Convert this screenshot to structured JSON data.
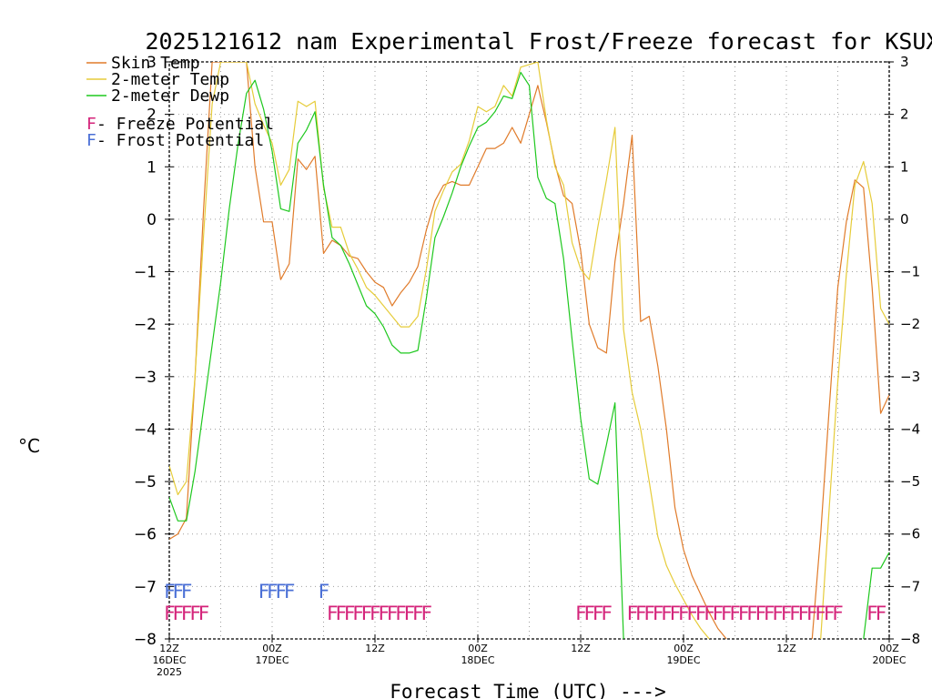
{
  "colors": {
    "skin": "#e07b2a",
    "temp": "#e6cc3a",
    "dewp": "#1ec81e",
    "freeze": "#d4237a",
    "frost": "#4a6fd6",
    "grid": "#a0a0a0",
    "axis": "#000000"
  },
  "chart_data": {
    "type": "line",
    "title": "2025121612 nam Experimental Frost/Freeze forecast for KSUX",
    "xlabel": "Forecast Time (UTC) --->",
    "ylabel": "°C",
    "ylim": [
      -8,
      3
    ],
    "xlim": [
      0,
      84
    ],
    "yticks": [
      -8,
      -7,
      -6,
      -5,
      -4,
      -3,
      -2,
      -1,
      0,
      1,
      2,
      3
    ],
    "x_ticks": [
      {
        "hour": 0,
        "label": "12Z",
        "date": "16DEC",
        "year": "2025"
      },
      {
        "hour": 12,
        "label": "00Z",
        "date": "17DEC",
        "year": ""
      },
      {
        "hour": 24,
        "label": "12Z",
        "date": "",
        "year": ""
      },
      {
        "hour": 36,
        "label": "00Z",
        "date": "18DEC",
        "year": ""
      },
      {
        "hour": 48,
        "label": "12Z",
        "date": "",
        "year": ""
      },
      {
        "hour": 60,
        "label": "00Z",
        "date": "19DEC",
        "year": ""
      },
      {
        "hour": 72,
        "label": "12Z",
        "date": "",
        "year": ""
      },
      {
        "hour": 84,
        "label": "00Z",
        "date": "20DEC",
        "year": ""
      }
    ],
    "legend": {
      "items": [
        {
          "key": "skin",
          "label": "Skin Temp"
        },
        {
          "key": "temp",
          "label": "2-meter Temp"
        },
        {
          "key": "dewp",
          "label": "2-meter Dewp"
        }
      ],
      "flags": [
        {
          "key": "freeze",
          "glyph": "F",
          "label": " - Freeze Potential"
        },
        {
          "key": "frost",
          "glyph": "F",
          "label": " - Frost Potential"
        }
      ]
    },
    "series": [
      {
        "name": "Skin Temp",
        "key": "skin",
        "points": [
          [
            0,
            -6.1
          ],
          [
            1,
            -6.0
          ],
          [
            2,
            -5.7
          ],
          [
            3,
            -3.0
          ],
          [
            4,
            0.2
          ],
          [
            5,
            3.0
          ],
          [
            9,
            3.0
          ],
          [
            10,
            1.0
          ],
          [
            11,
            -0.05
          ],
          [
            12,
            -0.05
          ],
          [
            13,
            -1.15
          ],
          [
            14,
            -0.85
          ],
          [
            15,
            1.15
          ],
          [
            16,
            0.95
          ],
          [
            17,
            1.2
          ],
          [
            18,
            -0.65
          ],
          [
            19,
            -0.4
          ],
          [
            20,
            -0.5
          ],
          [
            21,
            -0.7
          ],
          [
            22,
            -0.75
          ],
          [
            23,
            -1.0
          ],
          [
            24,
            -1.2
          ],
          [
            25,
            -1.3
          ],
          [
            26,
            -1.65
          ],
          [
            27,
            -1.4
          ],
          [
            28,
            -1.2
          ],
          [
            29,
            -0.9
          ],
          [
            30,
            -0.2
          ],
          [
            31,
            0.35
          ],
          [
            32,
            0.65
          ],
          [
            33,
            0.72
          ],
          [
            34,
            0.65
          ],
          [
            35,
            0.65
          ],
          [
            36,
            1.0
          ],
          [
            37,
            1.35
          ],
          [
            38,
            1.35
          ],
          [
            39,
            1.45
          ],
          [
            40,
            1.75
          ],
          [
            41,
            1.45
          ],
          [
            42,
            2.0
          ],
          [
            43,
            2.55
          ],
          [
            44,
            1.85
          ],
          [
            45,
            1.05
          ],
          [
            46,
            0.45
          ],
          [
            47,
            0.3
          ],
          [
            48,
            -0.6
          ],
          [
            49,
            -2.0
          ],
          [
            50,
            -2.45
          ],
          [
            51,
            -2.55
          ],
          [
            52,
            -0.8
          ],
          [
            53,
            0.3
          ],
          [
            54,
            1.6
          ],
          [
            55,
            -1.95
          ],
          [
            56,
            -1.85
          ],
          [
            57,
            -2.8
          ],
          [
            58,
            -4.0
          ],
          [
            59,
            -5.5
          ],
          [
            60,
            -6.3
          ],
          [
            61,
            -6.8
          ],
          [
            62,
            -7.15
          ],
          [
            63,
            -7.5
          ],
          [
            64,
            -7.8
          ],
          [
            65,
            -8.0
          ]
        ]
      },
      {
        "name": "Skin Temp (late)",
        "key": "skin",
        "points": [
          [
            75,
            -8.0
          ],
          [
            76,
            -6.0
          ],
          [
            77,
            -3.6
          ],
          [
            78,
            -1.3
          ],
          [
            79,
            -0.05
          ],
          [
            80,
            0.75
          ],
          [
            81,
            0.6
          ],
          [
            82,
            -1.3
          ],
          [
            83,
            -3.7
          ],
          [
            84,
            -3.35
          ]
        ]
      },
      {
        "name": "2-meter Temp",
        "key": "temp",
        "points": [
          [
            0,
            -4.7
          ],
          [
            1,
            -5.25
          ],
          [
            2,
            -5.0
          ],
          [
            3,
            -3.0
          ],
          [
            4,
            -0.3
          ],
          [
            5,
            2.2
          ],
          [
            6,
            3.0
          ],
          [
            9,
            3.0
          ],
          [
            10,
            2.2
          ],
          [
            11,
            1.8
          ],
          [
            12,
            1.45
          ],
          [
            13,
            0.65
          ],
          [
            14,
            0.95
          ],
          [
            15,
            2.25
          ],
          [
            16,
            2.15
          ],
          [
            17,
            2.25
          ],
          [
            18,
            0.6
          ],
          [
            19,
            -0.15
          ],
          [
            20,
            -0.15
          ],
          [
            21,
            -0.65
          ],
          [
            22,
            -0.95
          ],
          [
            23,
            -1.3
          ],
          [
            24,
            -1.45
          ],
          [
            25,
            -1.65
          ],
          [
            26,
            -1.85
          ],
          [
            27,
            -2.05
          ],
          [
            28,
            -2.05
          ],
          [
            29,
            -1.85
          ],
          [
            30,
            -0.95
          ],
          [
            31,
            0.15
          ],
          [
            32,
            0.55
          ],
          [
            33,
            0.9
          ],
          [
            34,
            1.05
          ],
          [
            35,
            1.5
          ],
          [
            36,
            2.15
          ],
          [
            37,
            2.05
          ],
          [
            38,
            2.15
          ],
          [
            39,
            2.55
          ],
          [
            40,
            2.35
          ],
          [
            41,
            2.9
          ],
          [
            42,
            2.95
          ],
          [
            43,
            3.0
          ],
          [
            44,
            1.9
          ],
          [
            45,
            1.0
          ],
          [
            46,
            0.65
          ],
          [
            47,
            -0.45
          ],
          [
            48,
            -0.95
          ],
          [
            49,
            -1.15
          ],
          [
            50,
            -0.15
          ],
          [
            51,
            0.75
          ],
          [
            52,
            1.75
          ],
          [
            53,
            -2.1
          ],
          [
            54,
            -3.3
          ],
          [
            55,
            -4.0
          ],
          [
            56,
            -5.0
          ],
          [
            57,
            -6.05
          ],
          [
            58,
            -6.6
          ],
          [
            59,
            -6.95
          ],
          [
            60,
            -7.25
          ],
          [
            61,
            -7.55
          ],
          [
            62,
            -7.8
          ],
          [
            63,
            -8.0
          ]
        ]
      },
      {
        "name": "2-meter Temp (late)",
        "key": "temp",
        "points": [
          [
            76,
            -8.0
          ],
          [
            77,
            -5.5
          ],
          [
            78,
            -3.1
          ],
          [
            79,
            -1.05
          ],
          [
            80,
            0.65
          ],
          [
            81,
            1.1
          ],
          [
            82,
            0.3
          ],
          [
            83,
            -1.7
          ],
          [
            84,
            -2.0
          ]
        ]
      },
      {
        "name": "2-meter Dewp",
        "key": "dewp",
        "points": [
          [
            0,
            -5.3
          ],
          [
            1,
            -5.75
          ],
          [
            2,
            -5.75
          ],
          [
            3,
            -4.8
          ],
          [
            4,
            -3.6
          ],
          [
            5,
            -2.4
          ],
          [
            6,
            -1.2
          ],
          [
            7,
            0.2
          ],
          [
            8,
            1.4
          ],
          [
            9,
            2.4
          ],
          [
            10,
            2.65
          ],
          [
            11,
            2.1
          ],
          [
            12,
            1.3
          ],
          [
            13,
            0.2
          ],
          [
            14,
            0.15
          ],
          [
            15,
            1.45
          ],
          [
            16,
            1.7
          ],
          [
            17,
            2.05
          ],
          [
            18,
            0.65
          ],
          [
            19,
            -0.35
          ],
          [
            20,
            -0.5
          ],
          [
            21,
            -0.85
          ],
          [
            22,
            -1.25
          ],
          [
            23,
            -1.65
          ],
          [
            24,
            -1.8
          ],
          [
            25,
            -2.05
          ],
          [
            26,
            -2.4
          ],
          [
            27,
            -2.55
          ],
          [
            28,
            -2.55
          ],
          [
            29,
            -2.5
          ],
          [
            30,
            -1.5
          ],
          [
            31,
            -0.35
          ],
          [
            32,
            0.05
          ],
          [
            33,
            0.5
          ],
          [
            34,
            1.0
          ],
          [
            35,
            1.4
          ],
          [
            36,
            1.75
          ],
          [
            37,
            1.85
          ],
          [
            38,
            2.05
          ],
          [
            39,
            2.35
          ],
          [
            40,
            2.3
          ],
          [
            41,
            2.8
          ],
          [
            42,
            2.55
          ],
          [
            43,
            0.8
          ],
          [
            44,
            0.4
          ],
          [
            45,
            0.3
          ],
          [
            46,
            -0.75
          ],
          [
            47,
            -2.3
          ],
          [
            48,
            -3.8
          ],
          [
            49,
            -4.95
          ],
          [
            50,
            -5.05
          ],
          [
            51,
            -4.3
          ],
          [
            52,
            -3.5
          ],
          [
            53,
            -8.0
          ]
        ]
      },
      {
        "name": "2-meter Dewp (late)",
        "key": "dewp",
        "points": [
          [
            81,
            -8.0
          ],
          [
            82,
            -6.65
          ],
          [
            83,
            -6.65
          ],
          [
            84,
            -6.35
          ]
        ]
      }
    ],
    "frost_runs": [
      {
        "start": 0,
        "count": 3
      },
      {
        "start": 11,
        "count": 4
      },
      {
        "start": 18,
        "count": 1
      }
    ],
    "freeze_runs": [
      {
        "start": 0,
        "count": 5
      },
      {
        "start": 19,
        "count": 12
      },
      {
        "start": 48,
        "count": 4
      },
      {
        "start": 54,
        "count": 25
      },
      {
        "start": 82,
        "count": 2
      }
    ]
  }
}
